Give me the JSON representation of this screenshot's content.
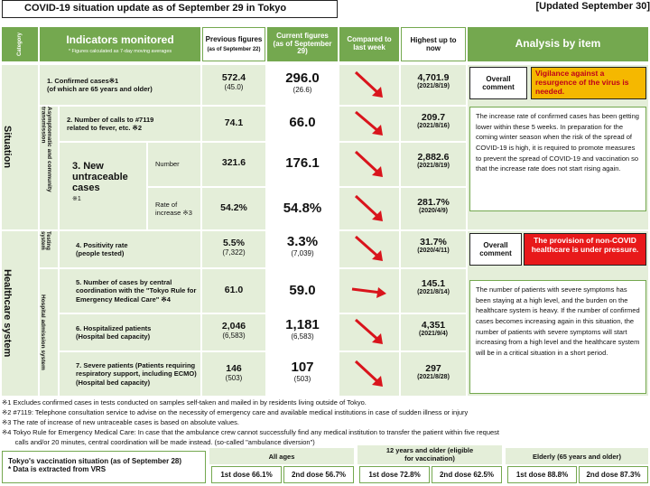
{
  "title": "COVID-19 situation update as of September 29 in Tokyo",
  "updated": "[Updated September 30]",
  "headers": {
    "category": "Category",
    "indicators": "Indicators monitored",
    "indicators_sub": "* Figures calculated as 7-day moving averages",
    "previous": "Previous figures",
    "previous_sub": "(as of September 22)",
    "current": "Current figures (as of September 29)",
    "compared": "Compared to last week",
    "highest": "Highest up to now",
    "analysis": "Analysis by item"
  },
  "sections": {
    "situation": "Situation",
    "healthcare": "Healthcare system",
    "asymptomatic": "Asymptomatic and community transmission",
    "testing": "Testing system",
    "hospital": "Hospital admission system"
  },
  "rows": [
    {
      "label": "1. Confirmed cases※1",
      "label2": "(of which are 65 years and older)",
      "prev": "572.4",
      "prev_sub": "(45.0)",
      "cur": "296.0",
      "cur_sub": "(26.6)",
      "high": "4,701.9",
      "high_date": "(2021/8/19)"
    },
    {
      "label": "2. Number of calls to #7119",
      "label2": "related to fever, etc. ※2",
      "prev": "74.1",
      "prev_sub": "",
      "cur": "66.0",
      "cur_sub": "",
      "high": "209.7",
      "high_date": "(2021/8/16)"
    },
    {
      "label": "3. New untraceable cases",
      "label2": "※1",
      "sublabel": "Number",
      "prev": "321.6",
      "prev_sub": "",
      "cur": "176.1",
      "cur_sub": "",
      "high": "2,882.6",
      "high_date": "(2021/8/19)"
    },
    {
      "label": "",
      "label2": "",
      "sublabel": "Rate of increase ※3",
      "prev": "54.2%",
      "prev_sub": "",
      "cur": "54.8%",
      "cur_sub": "",
      "high": "281.7%",
      "high_date": "(2020/4/9)"
    },
    {
      "label": "4. Positivity rate",
      "label2": "(people tested)",
      "prev": "5.5%",
      "prev_sub": "(7,322)",
      "cur": "3.3%",
      "cur_sub": "(7,039)",
      "high": "31.7%",
      "high_date": "(2020/4/11)"
    },
    {
      "label": "5. Number of cases by central coordination with the \"Tokyo Rule for Emergency Medical Care\" ※4",
      "label2": "",
      "prev": "61.0",
      "prev_sub": "",
      "cur": "59.0",
      "cur_sub": "",
      "high": "145.1",
      "high_date": "(2021/8/14)"
    },
    {
      "label": "6. Hospitalized patients",
      "label2": "(Hospital bed capacity)",
      "prev": "2,046",
      "prev_sub": "(6,583)",
      "cur": "1,181",
      "cur_sub": "(6,583)",
      "high": "4,351",
      "high_date": "(2021/9/4)"
    },
    {
      "label": "7. Severe patients (Patients requiring respiratory support, including ECMO)",
      "label2": "(Hospital bed capacity)",
      "prev": "146",
      "prev_sub": "(503)",
      "cur": "107",
      "cur_sub": "(503)",
      "high": "297",
      "high_date": "(2021/8/28)"
    }
  ],
  "overall": "Overall comment",
  "situation_comment": "Vigilance against a resurgence of the virus is needed.",
  "situation_analysis": "The increase rate of confirmed cases has been getting lower within these 5 weeks. In preparation for the coming winter season when the risk of the spread of COVID-19 is high, it is required to promote measures to prevent the spread of COVID-19 and vaccination so that the increase rate does not start rising again.",
  "healthcare_comment": "The provision of non-COVID healthcare is under pressure.",
  "healthcare_analysis": "The number of patients with severe symptoms has been staying at a high level, and the burden on the healthcare system is heavy. If the number of confirmed cases becomes increasing again in this situation, the number of patients with severe symptoms will start increasing from a high level and the healthcare system will be in a critical situation in a short period.",
  "notes": [
    "※1  Excludes confirmed cases in tests conducted on samples self-taken and mailed in by residents living outside of Tokyo.",
    "※2  #7119: Telephone consultation service to advise on the necessity of emergency care and available medical institutions in case of sudden illness or injury",
    "※3  The rate of increase of new untraceable cases is based on absolute values.",
    "※4  Tokyo Rule for Emergency Medical Care: In case that the ambulance crew cannot successfully find any medical institution to transfer the patient within five request",
    "       calls and/or 20 minutes, central coordination will be made instead. (so-called \"ambulance diversion\")"
  ],
  "vaccination": {
    "title": "Tokyo's vaccination situation (as of September 28)",
    "note": "* Data is extracted from VRS",
    "groups": [
      {
        "name": "All ages",
        "dose1": "1st dose 66.1%",
        "dose2": "2nd dose 56.7%"
      },
      {
        "name": "12 years and older (eligible for vaccination)",
        "dose1": "1st dose 72.8%",
        "dose2": "2nd dose 62.5%"
      },
      {
        "name": "Elderly (65 years and older)",
        "dose1": "1st dose 88.8%",
        "dose2": "2nd dose 87.3%"
      }
    ]
  },
  "colors": {
    "green": "#74a84f",
    "lightgreen": "#e4eed9",
    "yellow": "#f5b800",
    "red": "#e8191a",
    "arrow": "#d9141c"
  }
}
